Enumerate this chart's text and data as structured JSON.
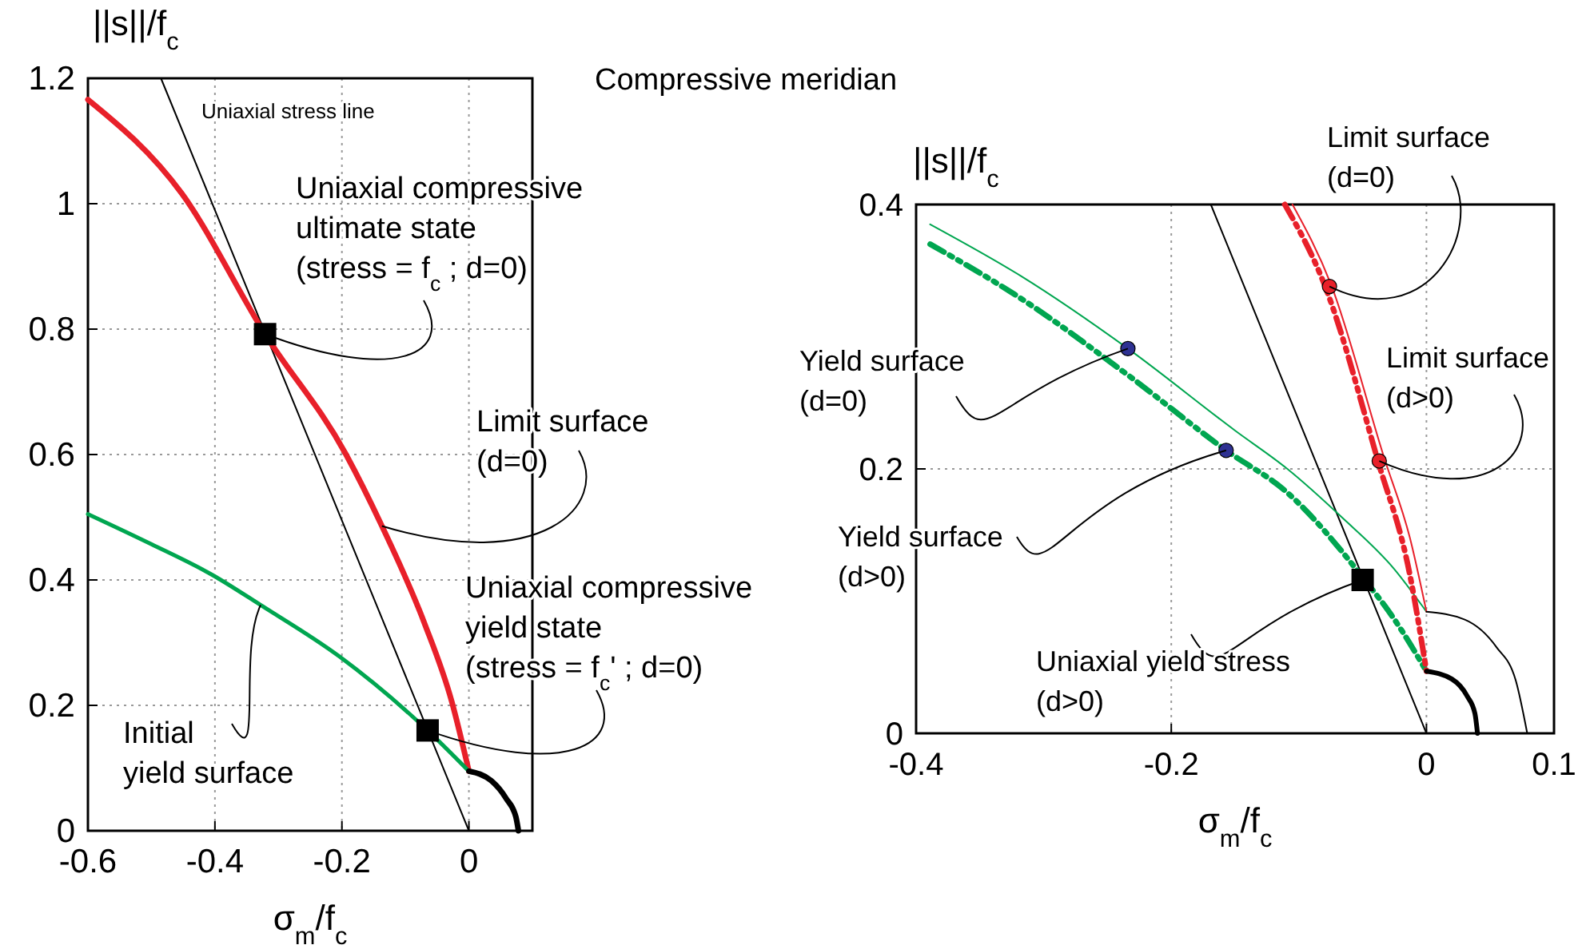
{
  "chart_data": [
    {
      "type": "line",
      "xlabel": "σ$_{m}$/f$_{c}$",
      "ylabel": "||s||/f$_{c}$",
      "xlim": [
        -0.6,
        0.1
      ],
      "ylim": [
        0,
        1.2
      ],
      "xticks": [
        -0.6,
        -0.4,
        -0.2,
        0
      ],
      "yticks": [
        0,
        0.2,
        0.4,
        0.6,
        0.8,
        1,
        1.2
      ],
      "grid": true,
      "series": [
        {
          "color": "#000000",
          "line_style": "solid",
          "x": [
            -0.485,
            0
          ],
          "values": [
            1.2,
            0
          ]
        },
        {
          "color": "#e8202a",
          "line_style": "solid",
          "x": [
            -0.6,
            -0.452,
            -0.321,
            -0.194,
            -0.137,
            -0.07,
            -0.027,
            0
          ],
          "values": [
            1.166,
            1.016,
            0.792,
            0.601,
            0.486,
            0.331,
            0.206,
            0.095
          ]
        },
        {
          "color": "#00a650",
          "line_style": "solid",
          "x": [
            -0.6,
            -0.5,
            -0.404,
            -0.328,
            -0.204,
            -0.065,
            0
          ],
          "values": [
            0.505,
            0.457,
            0.408,
            0.36,
            0.278,
            0.16,
            0.095
          ]
        },
        {
          "color": "#000000",
          "line_style": "solid",
          "x": [
            0,
            0.035,
            0.059,
            0.074,
            0.078
          ],
          "values": [
            0.095,
            0.08,
            0.051,
            0.022,
            0
          ]
        },
        {
          "type": "scatter",
          "marker": "square",
          "color": "#000000",
          "x": [
            -0.321,
            -0.065
          ],
          "values": [
            0.792,
            0.16
          ]
        }
      ],
      "annotations": [
        "Uniaxial stress line",
        {
          "text": "Uniaxial compressive\nultimate  state\n(stress = f$_{c}$ ; d=0)",
          "x": -0.321,
          "y": 0.792
        },
        {
          "text": "Limit surface\n(d=0)",
          "x": -0.137,
          "y": 0.486
        },
        {
          "text": "Uniaxial compressive\nyield  state\n(stress = f$_{c}$'   ; d=0)",
          "x": -0.065,
          "y": 0.16
        },
        {
          "text": "Initial\nyield surface",
          "x": -0.328,
          "y": 0.36
        }
      ]
    },
    {
      "type": "line",
      "title": "Compressive meridian",
      "xlabel": "σ$_{m}$/f$_{c}$",
      "ylabel": "||s||/f$_{c}$",
      "xlim": [
        -0.4,
        0.1
      ],
      "ylim": [
        0,
        0.4
      ],
      "xticks": [
        -0.4,
        -0.2,
        0,
        0.1
      ],
      "yticks": [
        0,
        0.2,
        0.4
      ],
      "grid": true,
      "series": [
        {
          "color": "#000000",
          "line_style": "solid",
          "x": [
            -0.169,
            0
          ],
          "values": [
            0.4,
            0
          ]
        },
        {
          "color": "#00a650",
          "line_style": "solid",
          "x": [
            -0.389,
            -0.318,
            -0.234,
            -0.15,
            -0.109,
            -0.067,
            -0.025,
            0
          ],
          "values": [
            0.385,
            0.346,
            0.291,
            0.229,
            0.2,
            0.164,
            0.124,
            0.092
          ]
        },
        {
          "color": "#00a650",
          "line_style": "dashed",
          "x": [
            -0.389,
            -0.318,
            -0.234,
            -0.157,
            -0.109,
            -0.05,
            -0.025,
            0
          ],
          "values": [
            0.37,
            0.329,
            0.271,
            0.214,
            0.182,
            0.118,
            0.086,
            0.047
          ]
        },
        {
          "color": "#e8202a",
          "line_style": "solid",
          "x": [
            -0.105,
            -0.075,
            -0.033,
            -0.013,
            0
          ],
          "values": [
            0.4,
            0.34,
            0.208,
            0.148,
            0.092
          ]
        },
        {
          "color": "#e8202a",
          "line_style": "dashed",
          "x": [
            -0.111,
            -0.079,
            -0.038,
            -0.013,
            0
          ],
          "values": [
            0.4,
            0.337,
            0.206,
            0.12,
            0.047
          ]
        },
        {
          "color": "#000000",
          "line_style": "solid",
          "x": [
            0,
            0.02,
            0.032,
            0.038,
            0.04
          ],
          "values": [
            0.047,
            0.041,
            0.028,
            0.015,
            0
          ]
        },
        {
          "color": "#000000",
          "line_style": "solid",
          "x": [
            0,
            0.03,
            0.055,
            0.07,
            0.079
          ],
          "values": [
            0.092,
            0.086,
            0.065,
            0.04,
            0
          ]
        },
        {
          "type": "scatter",
          "marker": "circle",
          "color": "#2e3192",
          "x": [
            -0.234,
            -0.157
          ],
          "values": [
            0.291,
            0.214
          ]
        },
        {
          "type": "scatter",
          "marker": "circle",
          "color": "#e8202a",
          "x": [
            -0.076,
            -0.037
          ],
          "values": [
            0.338,
            0.206
          ]
        },
        {
          "type": "scatter",
          "marker": "square",
          "color": "#000000",
          "x": [
            -0.05
          ],
          "values": [
            0.116
          ]
        }
      ],
      "annotations": [
        {
          "text": "Limit surface\n(d=0)",
          "x": -0.076,
          "y": 0.338
        },
        {
          "text": "Limit surface\n(d>0)",
          "x": -0.037,
          "y": 0.206
        },
        {
          "text": "Yield surface\n(d=0)",
          "x": -0.234,
          "y": 0.291
        },
        {
          "text": "Yield surface\n(d>0)",
          "x": -0.157,
          "y": 0.214
        },
        {
          "text": "Uniaxial yield stress\n(d>0)",
          "x": -0.05,
          "y": 0.116
        }
      ]
    }
  ]
}
